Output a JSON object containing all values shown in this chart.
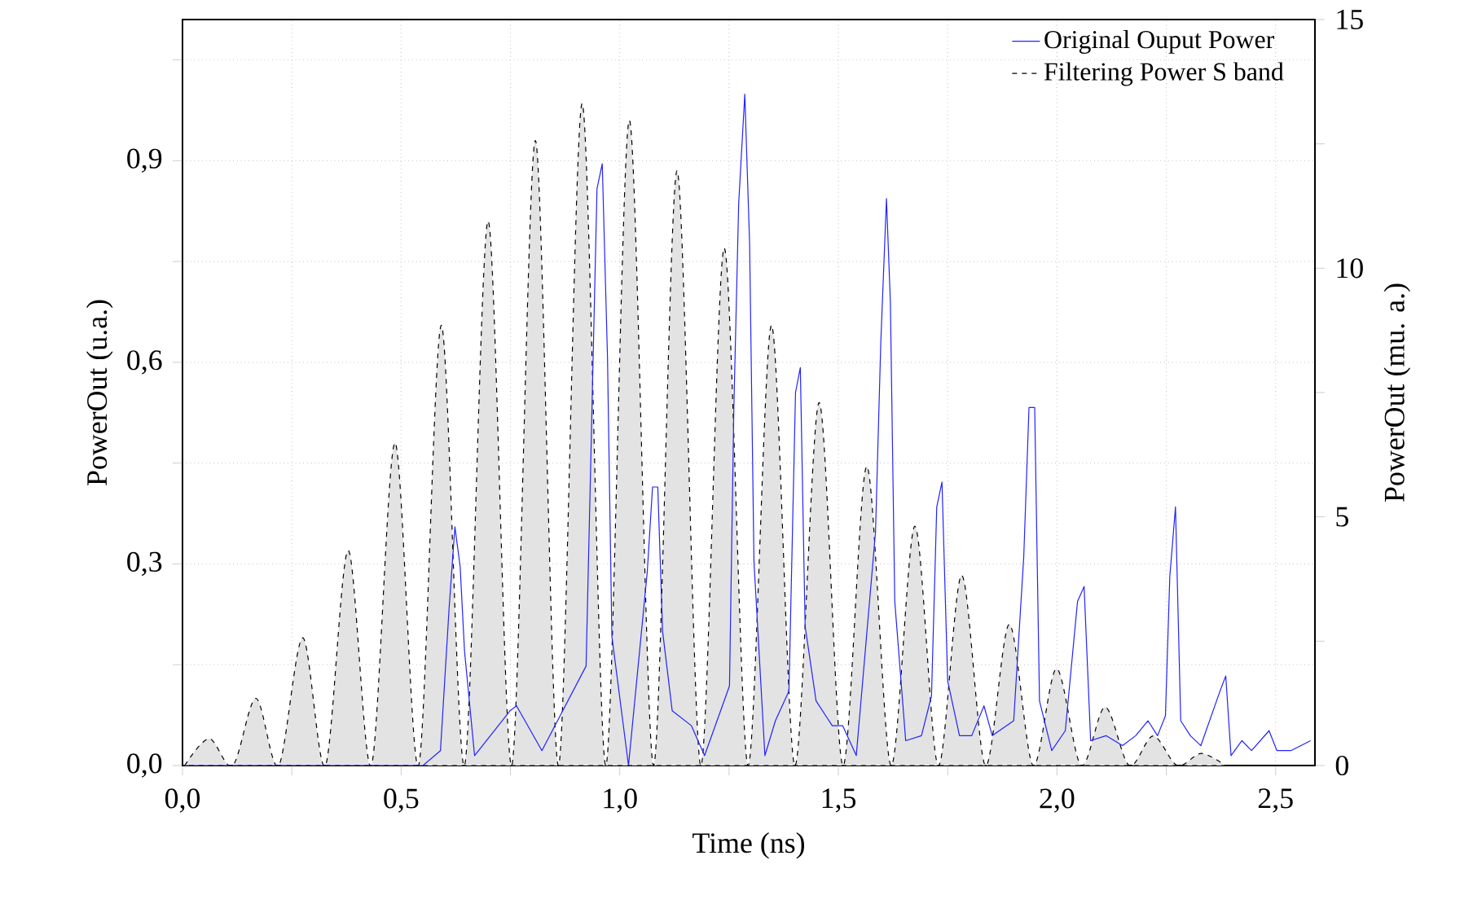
{
  "chart_data": {
    "type": "line",
    "xlabel": "Time (ns)",
    "ylabel": "PowerOut (u.a.)",
    "y2label": "PowerOut (mu. a.)",
    "xlim": [
      0,
      2.59
    ],
    "ylim": [
      0,
      1.11
    ],
    "y2lim": [
      0,
      15
    ],
    "xticks": [
      {
        "value": 0,
        "label": "0,0"
      },
      {
        "value": 0.25,
        "label": null
      },
      {
        "value": 0.5,
        "label": "0,5"
      },
      {
        "value": 0.75,
        "label": null
      },
      {
        "value": 1,
        "label": "1,0"
      },
      {
        "value": 1.25,
        "label": null
      },
      {
        "value": 1.5,
        "label": "1,5"
      },
      {
        "value": 1.75,
        "label": null
      },
      {
        "value": 2,
        "label": "2,0"
      },
      {
        "value": 2.25,
        "label": null
      },
      {
        "value": 2.5,
        "label": "2,5"
      }
    ],
    "yticks": [
      {
        "value": 0,
        "label": "0,0"
      },
      {
        "value": 0.15,
        "label": null
      },
      {
        "value": 0.3,
        "label": "0,3"
      },
      {
        "value": 0.45,
        "label": null
      },
      {
        "value": 0.6,
        "label": "0,6"
      },
      {
        "value": 0.75,
        "label": null
      },
      {
        "value": 0.9,
        "label": "0,9"
      },
      {
        "value": 1.05,
        "label": null
      }
    ],
    "y2ticks": [
      0,
      {
        "value": 2.5,
        "label": null
      },
      5,
      {
        "value": 7.5,
        "label": null
      },
      10,
      {
        "value": 12.5,
        "label": null
      },
      15
    ],
    "grid": true,
    "legend": "top right",
    "series": [
      {
        "name": "Original Ouput Power",
        "axis": "y2",
        "color": "#2222ff",
        "line_style": "solid",
        "x": [
          0,
          0.55,
          0.59,
          0.61,
          0.623,
          0.635,
          0.645,
          0.668,
          0.749,
          0.764,
          0.822,
          0.923,
          0.948,
          0.96,
          0.972,
          0.982,
          1.02,
          1.063,
          1.075,
          1.087,
          1.098,
          1.12,
          1.164,
          1.194,
          1.251,
          1.261,
          1.272,
          1.286,
          1.297,
          1.307,
          1.332,
          1.356,
          1.387,
          1.402,
          1.413,
          1.424,
          1.449,
          1.486,
          1.51,
          1.541,
          1.585,
          1.597,
          1.61,
          1.619,
          1.629,
          1.654,
          1.69,
          1.713,
          1.725,
          1.737,
          1.75,
          1.777,
          1.805,
          1.833,
          1.852,
          1.901,
          1.924,
          1.936,
          1.949,
          1.96,
          1.988,
          2.019,
          2.047,
          2.062,
          2.077,
          2.112,
          2.15,
          2.18,
          2.208,
          2.23,
          2.248,
          2.258,
          2.271,
          2.283,
          2.305,
          2.329,
          2.373,
          2.386,
          2.398,
          2.423,
          2.445,
          2.485,
          2.503,
          2.535,
          2.58
        ],
        "values": [
          0,
          0,
          0.3,
          3.2,
          4.8,
          4.0,
          2.3,
          0.2,
          1.1,
          1.2,
          0.3,
          2.0,
          11.6,
          12.1,
          8.2,
          2.6,
          0,
          3.9,
          5.6,
          5.6,
          2.7,
          1.1,
          0.8,
          0.2,
          1.6,
          7.2,
          11.3,
          13.5,
          10.5,
          4.1,
          0.2,
          0.9,
          1.5,
          7.5,
          8.0,
          2.8,
          1.3,
          0.8,
          0.8,
          0.2,
          4.7,
          8.5,
          11.4,
          9.3,
          3.3,
          0.5,
          0.6,
          1.4,
          5.2,
          5.7,
          1.7,
          0.6,
          0.6,
          1.2,
          0.6,
          0.9,
          4.2,
          7.2,
          7.2,
          1.3,
          0.3,
          0.7,
          3.3,
          3.6,
          0.5,
          0.6,
          0.4,
          0.6,
          0.9,
          0.6,
          1.0,
          3.8,
          5.2,
          0.9,
          0.6,
          0.4,
          1.5,
          1.8,
          0.2,
          0.5,
          0.3,
          0.7,
          0.3,
          0.3,
          0.5
        ]
      },
      {
        "name": "Filtering Power S band",
        "type": "area",
        "color": "#000000",
        "line_style": "dashed",
        "x": [
          0.005,
          0.061,
          0.115,
          0.168,
          0.22,
          0.275,
          0.327,
          0.379,
          0.432,
          0.486,
          0.54,
          0.592,
          0.645,
          0.699,
          0.753,
          0.807,
          0.86,
          0.914,
          0.968,
          1.022,
          1.077,
          1.131,
          1.185,
          1.239,
          1.293,
          1.347,
          1.4,
          1.456,
          1.51,
          1.565,
          1.62,
          1.675,
          1.728,
          1.782,
          1.836,
          1.891,
          1.945,
          1.999,
          2.055,
          2.11,
          2.165,
          2.22,
          2.275,
          2.33,
          2.385
        ],
        "values": [
          0,
          0.04,
          0,
          0.1,
          0,
          0.19,
          0,
          0.32,
          0,
          0.48,
          0,
          0.655,
          0,
          0.81,
          0,
          0.93,
          0,
          0.985,
          0,
          0.96,
          0,
          0.885,
          0,
          0.77,
          0,
          0.655,
          0,
          0.54,
          0,
          0.445,
          0,
          0.356,
          0,
          0.283,
          0,
          0.21,
          0,
          0.144,
          0,
          0.087,
          0,
          0.044,
          0,
          0.018,
          0
        ]
      }
    ]
  }
}
